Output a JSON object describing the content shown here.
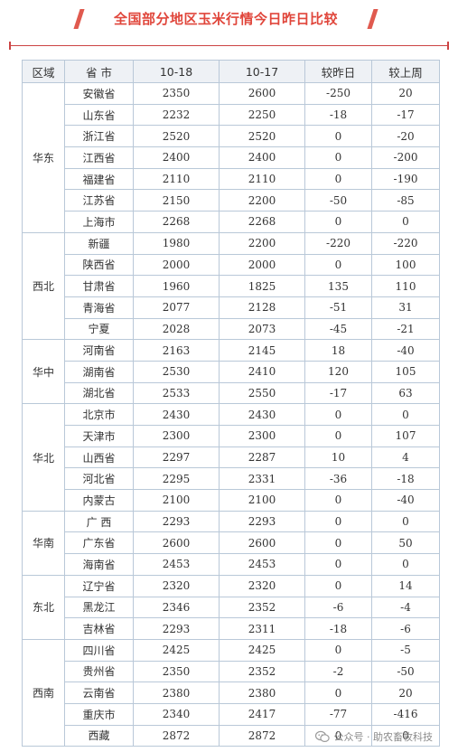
{
  "title": "全国部分地区玉米行情今日昨日比较",
  "columns": [
    "区域",
    "省 市",
    "10-18",
    "10-17",
    "较昨日",
    "较上周"
  ],
  "groups": [
    {
      "region": "华东",
      "rows": [
        [
          "安徽省",
          "2350",
          "2600",
          "-250",
          "20"
        ],
        [
          "山东省",
          "2232",
          "2250",
          "-18",
          "-17"
        ],
        [
          "浙江省",
          "2520",
          "2520",
          "0",
          "-20"
        ],
        [
          "江西省",
          "2400",
          "2400",
          "0",
          "-200"
        ],
        [
          "福建省",
          "2110",
          "2110",
          "0",
          "-190"
        ],
        [
          "江苏省",
          "2150",
          "2200",
          "-50",
          "-85"
        ],
        [
          "上海市",
          "2268",
          "2268",
          "0",
          "0"
        ]
      ]
    },
    {
      "region": "西北",
      "rows": [
        [
          "新疆",
          "1980",
          "2200",
          "-220",
          "-220"
        ],
        [
          "陕西省",
          "2000",
          "2000",
          "0",
          "100"
        ],
        [
          "甘肃省",
          "1960",
          "1825",
          "135",
          "110"
        ],
        [
          "青海省",
          "2077",
          "2128",
          "-51",
          "31"
        ],
        [
          "宁夏",
          "2028",
          "2073",
          "-45",
          "-21"
        ]
      ]
    },
    {
      "region": "华中",
      "rows": [
        [
          "河南省",
          "2163",
          "2145",
          "18",
          "-40"
        ],
        [
          "湖南省",
          "2530",
          "2410",
          "120",
          "105"
        ],
        [
          "湖北省",
          "2533",
          "2550",
          "-17",
          "63"
        ]
      ]
    },
    {
      "region": "华北",
      "rows": [
        [
          "北京市",
          "2430",
          "2430",
          "0",
          "0"
        ],
        [
          "天津市",
          "2300",
          "2300",
          "0",
          "107"
        ],
        [
          "山西省",
          "2297",
          "2287",
          "10",
          "4"
        ],
        [
          "河北省",
          "2295",
          "2331",
          "-36",
          "-18"
        ],
        [
          "内蒙古",
          "2100",
          "2100",
          "0",
          "-40"
        ]
      ]
    },
    {
      "region": "华南",
      "rows": [
        [
          "广 西",
          "2293",
          "2293",
          "0",
          "0"
        ],
        [
          "广东省",
          "2600",
          "2600",
          "0",
          "50"
        ],
        [
          "海南省",
          "2453",
          "2453",
          "0",
          "0"
        ]
      ]
    },
    {
      "region": "东北",
      "rows": [
        [
          "辽宁省",
          "2320",
          "2320",
          "0",
          "14"
        ],
        [
          "黑龙江",
          "2346",
          "2352",
          "-6",
          "-4"
        ],
        [
          "吉林省",
          "2293",
          "2311",
          "-18",
          "-6"
        ]
      ]
    },
    {
      "region": "西南",
      "rows": [
        [
          "四川省",
          "2425",
          "2425",
          "0",
          "-5"
        ],
        [
          "贵州省",
          "2350",
          "2352",
          "-2",
          "-50"
        ],
        [
          "云南省",
          "2380",
          "2380",
          "0",
          "20"
        ],
        [
          "重庆市",
          "2340",
          "2417",
          "-77",
          "-416"
        ],
        [
          "西藏",
          "2872",
          "2872",
          "0",
          "0"
        ]
      ]
    }
  ],
  "watermark": "公众号 · 助农畜牧科技",
  "colors": {
    "title": "#e0463b",
    "up": "#e0211b",
    "down": "#2a9a2a",
    "border": "#b9c8d8",
    "header_bg": "#eef1f5"
  }
}
